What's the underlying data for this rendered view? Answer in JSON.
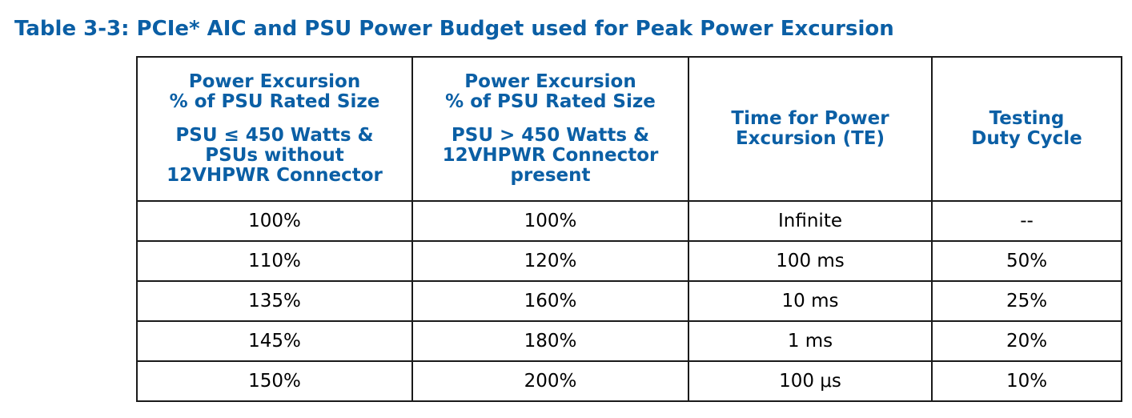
{
  "caption": "Table 3-3: PCIe* AIC and PSU Power Budget used for Peak Power Excursion",
  "headers": [
    {
      "part1": [
        "Power Excursion",
        "% of PSU Rated Size"
      ],
      "part2": [
        "PSU ≤ 450 Watts &",
        "PSUs without",
        "12VHPWR Connector"
      ]
    },
    {
      "part1": [
        "Power Excursion",
        "% of PSU Rated Size"
      ],
      "part2": [
        "PSU > 450 Watts &",
        "12VHPWR Connector",
        "present"
      ]
    },
    {
      "part1": [
        "Time for Power",
        "Excursion (TE)"
      ]
    },
    {
      "part1": [
        "Testing",
        "Duty Cycle"
      ]
    }
  ],
  "rows": [
    [
      "100%",
      "100%",
      "Infinite",
      "--"
    ],
    [
      "110%",
      "120%",
      "100 ms",
      "50%"
    ],
    [
      "135%",
      "160%",
      "10 ms",
      "25%"
    ],
    [
      "145%",
      "180%",
      "1 ms",
      "20%"
    ],
    [
      "150%",
      "200%",
      "100 μs",
      "10%"
    ]
  ],
  "colors": {
    "heading_blue": "#0b5fa5",
    "border": "#1a1a1a",
    "text": "#000000"
  }
}
